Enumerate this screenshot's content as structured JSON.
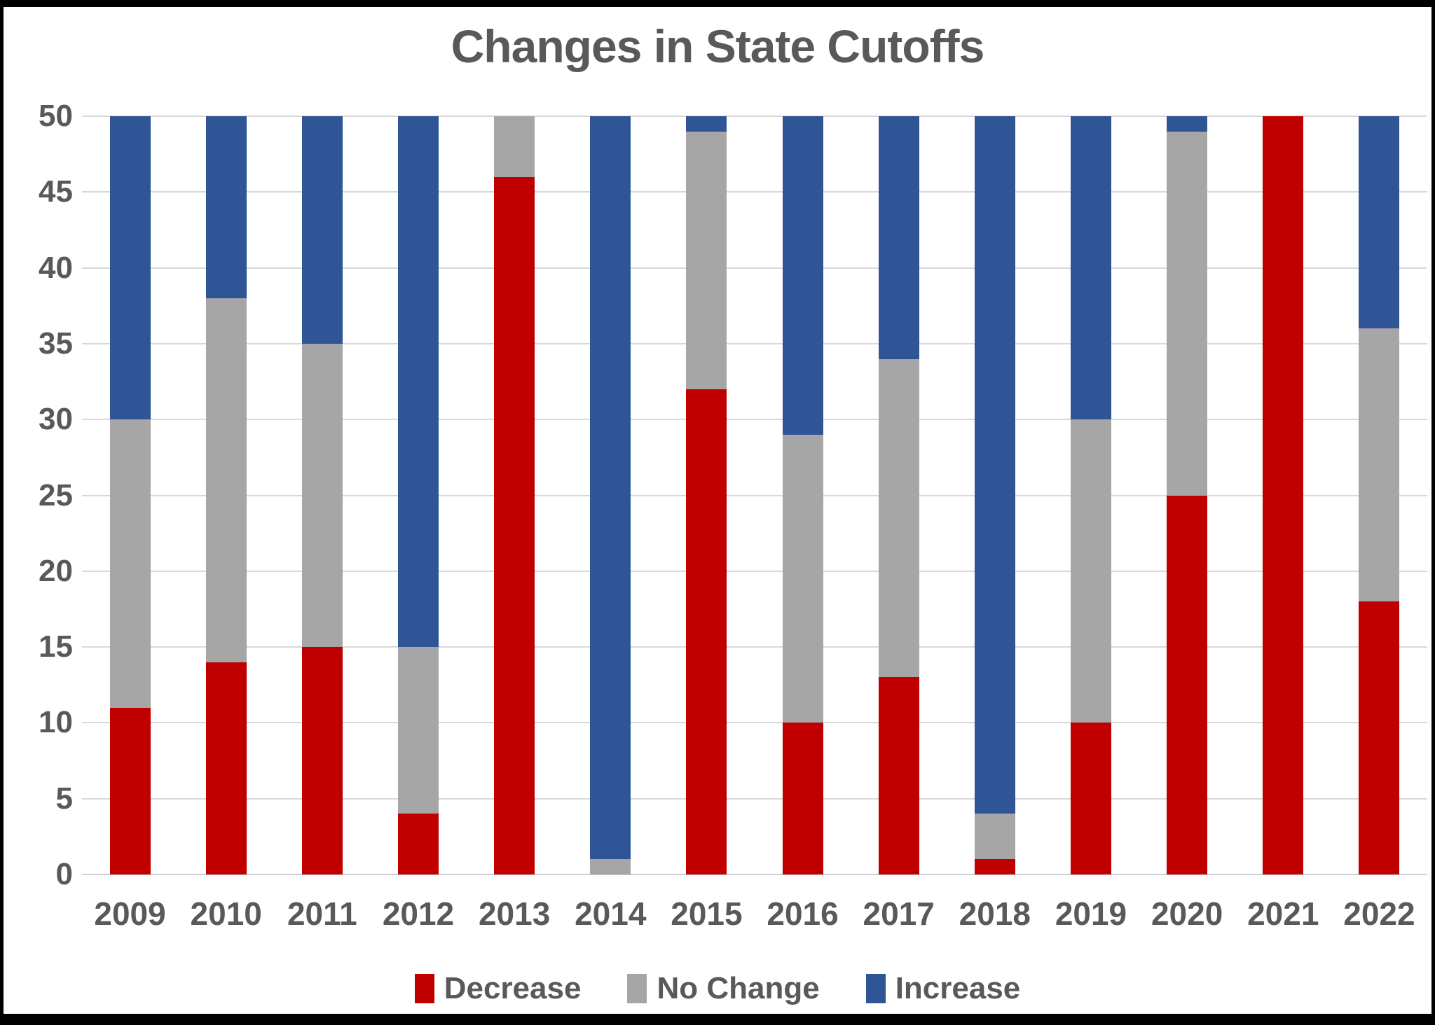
{
  "title": "Changes in State Cutoffs",
  "colors": {
    "decrease": "#C00000",
    "no_change": "#A6A6A6",
    "increase": "#2F5597",
    "grid": "#D9D9D9",
    "baseline": "#CFCDCD",
    "text": "#595959",
    "background": "#FFFFFF",
    "frame": "#000000"
  },
  "chart_data": {
    "type": "bar",
    "stacked": true,
    "title": "Changes in State Cutoffs",
    "categories": [
      "2009",
      "2010",
      "2011",
      "2012",
      "2013",
      "2014",
      "2015",
      "2016",
      "2017",
      "2018",
      "2019",
      "2020",
      "2021",
      "2022"
    ],
    "series": [
      {
        "name": "Decrease",
        "color": "#C00000",
        "values": [
          11,
          14,
          15,
          4,
          46,
          0,
          32,
          10,
          13,
          1,
          10,
          25,
          50,
          18
        ]
      },
      {
        "name": "No Change",
        "color": "#A6A6A6",
        "values": [
          19,
          24,
          20,
          11,
          4,
          1,
          17,
          19,
          21,
          3,
          20,
          24,
          0,
          18
        ]
      },
      {
        "name": "Increase",
        "color": "#2F5597",
        "values": [
          20,
          12,
          15,
          35,
          0,
          49,
          1,
          21,
          16,
          46,
          20,
          1,
          0,
          14
        ]
      }
    ],
    "totals_per_year": 50,
    "xlabel": "",
    "ylabel": "",
    "ylim": [
      0,
      50
    ],
    "y_ticks": [
      0,
      5,
      10,
      15,
      20,
      25,
      30,
      35,
      40,
      45,
      50
    ],
    "grid": true,
    "legend_position": "bottom"
  }
}
